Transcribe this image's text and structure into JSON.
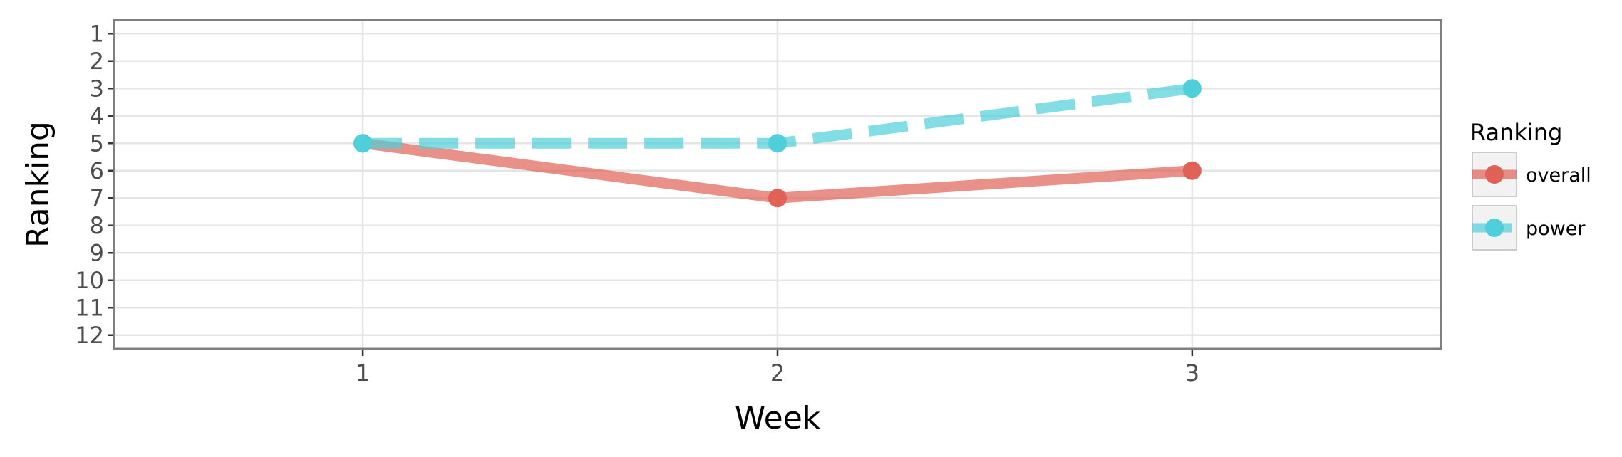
{
  "chart_data": {
    "type": "line",
    "title": "",
    "xlabel": "Week",
    "ylabel": "Ranking",
    "x": [
      1,
      2,
      3
    ],
    "x_ticks": [
      "1",
      "2",
      "3"
    ],
    "y_ticks": [
      "1",
      "2",
      "3",
      "4",
      "5",
      "6",
      "7",
      "8",
      "9",
      "10",
      "11",
      "12"
    ],
    "xlim": [
      0.4,
      3.6
    ],
    "ylim": [
      12.5,
      0.5
    ],
    "y_reversed": true,
    "grid": true,
    "legend": {
      "title": "Ranking",
      "placement": "right"
    },
    "series": [
      {
        "name": "overall",
        "values": [
          5,
          7,
          6
        ],
        "color": "#e06156",
        "line_style": "solid"
      },
      {
        "name": "power",
        "values": [
          5,
          5,
          3
        ],
        "color": "#4fcfda",
        "line_style": "dashed"
      }
    ]
  }
}
